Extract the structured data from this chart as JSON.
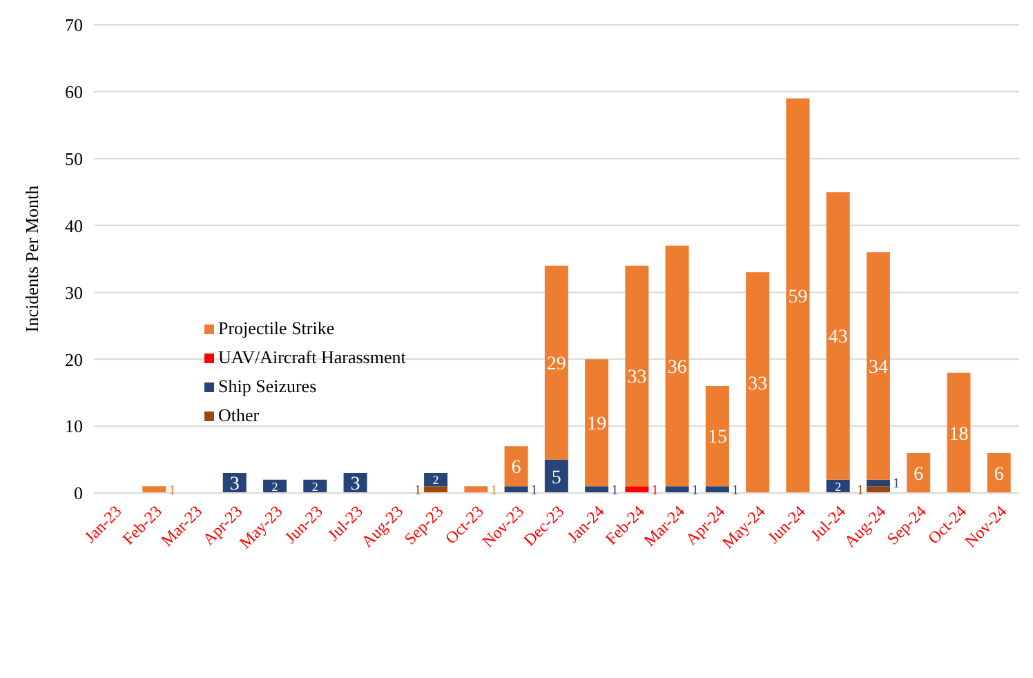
{
  "chart_data": {
    "type": "bar",
    "stacked": true,
    "ylabel": "Incidents Per Month",
    "categories": [
      "Jan-23",
      "Feb-23",
      "Mar-23",
      "Apr-23",
      "May-23",
      "Jun-23",
      "Jul-23",
      "Aug-23",
      "Sep-23",
      "Oct-23",
      "Nov-23",
      "Dec-23",
      "Jan-24",
      "Feb-24",
      "Mar-24",
      "Apr-24",
      "May-24",
      "Jun-24",
      "Jul-24",
      "Aug-24",
      "Sep-24",
      "Oct-24",
      "Nov-24"
    ],
    "series": [
      {
        "name": "Other",
        "color": "#9e480e",
        "values": [
          null,
          null,
          null,
          null,
          null,
          null,
          null,
          null,
          1,
          null,
          null,
          null,
          null,
          null,
          null,
          null,
          null,
          null,
          null,
          1,
          null,
          null,
          null
        ]
      },
      {
        "name": "Ship Seizures",
        "color": "#264478",
        "values": [
          null,
          null,
          null,
          3,
          2,
          2,
          3,
          null,
          2,
          null,
          1,
          5,
          1,
          null,
          1,
          1,
          null,
          null,
          2,
          1,
          null,
          null,
          null
        ]
      },
      {
        "name": "UAV/Aircraft Harassment",
        "color": "#ff0000",
        "values": [
          null,
          null,
          null,
          null,
          null,
          null,
          null,
          null,
          null,
          null,
          null,
          null,
          null,
          1,
          null,
          null,
          null,
          null,
          null,
          null,
          null,
          null,
          null
        ]
      },
      {
        "name": "Projectile Strike",
        "color": "#ed7d31",
        "values": [
          null,
          1,
          null,
          null,
          null,
          null,
          null,
          null,
          null,
          1,
          6,
          29,
          19,
          33,
          36,
          15,
          33,
          59,
          43,
          34,
          6,
          18,
          6
        ]
      }
    ],
    "ylim": [
      0,
      70
    ],
    "yticks": [
      0,
      10,
      20,
      30,
      40,
      50,
      60,
      70
    ],
    "grid": "y",
    "legend": "left",
    "data_labels": true
  }
}
